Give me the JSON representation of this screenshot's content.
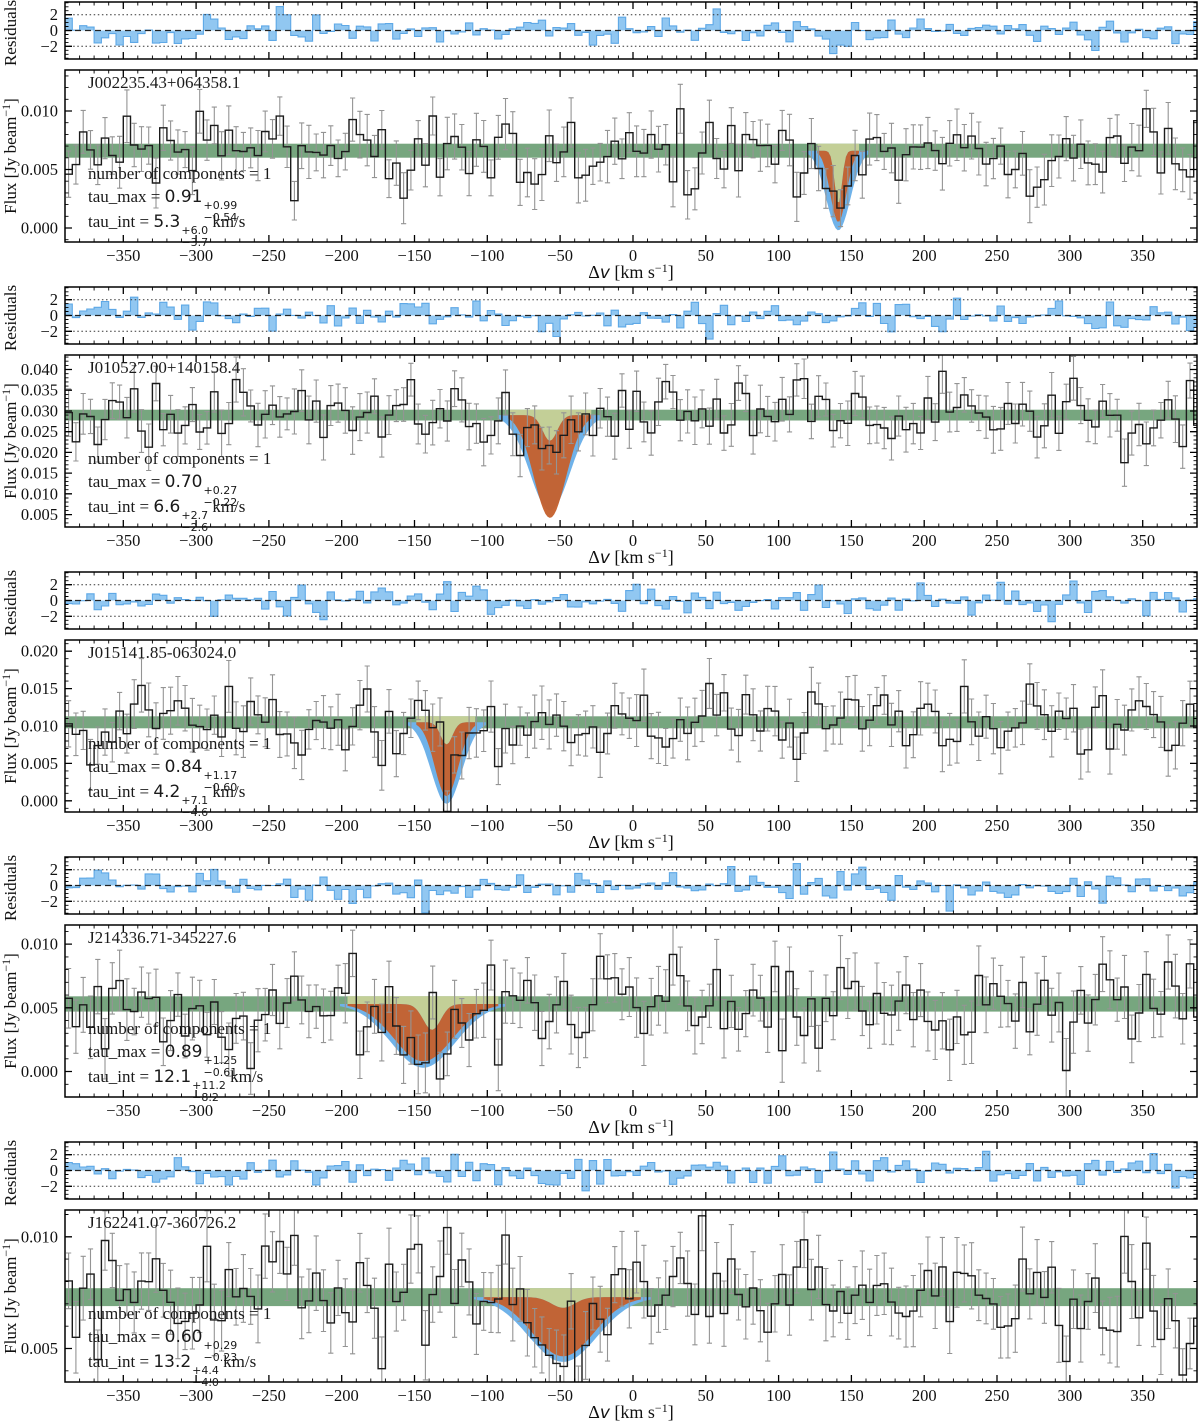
{
  "figure": {
    "xlim": [
      -390,
      387.3
    ],
    "x_major_ticks": [
      -350,
      -300,
      -250,
      -200,
      -150,
      -100,
      -50,
      0,
      50,
      100,
      150,
      200,
      250,
      300,
      350
    ],
    "x_minor_step_kms": 10,
    "bin_width_kms": 5,
    "xlabel_parts": {
      "delta": "Δ",
      "var": "v",
      "unit": " [km s",
      "sup": "−1",
      "close": "]"
    },
    "flux_ylabel_parts": {
      "pre": "Flux [Jy beam",
      "sup": "−1",
      "post": "]"
    },
    "residuals_ylabel": "Residuals"
  },
  "colors": {
    "axis": "#000000",
    "step_line": "#1b1b1b",
    "error_bar": "#949494",
    "continuum_band": "#77a67f",
    "continuum_band_light": "#c3cf97",
    "model_fill": "#c5612e",
    "model_uncertainty_fill": "#6fb2e9",
    "residual_fill": "#85c1f0",
    "residual_edge": "#5ea8e6",
    "zero_dash_line": "#222222",
    "guide_dot_line": "#333333"
  },
  "chart_data": [
    {
      "type": "line",
      "title": "J002235.43+064358.1",
      "ylim": [
        -0.0012,
        0.0135
      ],
      "yticks": [
        0.0,
        0.005,
        0.01
      ],
      "continuum": {
        "level": 0.0066,
        "half_width": 0.0006
      },
      "noise_sigma": 0.0016,
      "errorbar_half": 0.0019,
      "absorption_model": {
        "center_kms": 141,
        "width_kms": 5.5,
        "min_flux": 0.0005,
        "uncertainty_min_flux": -0.0002,
        "uncertainty_width_scale": 1.5,
        "notch_frac": 0.75,
        "notch_width_kms": 2.5,
        "notch_center_kms": 141,
        "data_dip_depth": 0.0055,
        "data_dip_width_kms": 4
      },
      "annotations": {
        "components": "number of components = 1",
        "tau_max": {
          "label": "tau_max = ",
          "value": "0.91",
          "plus": "+0.99",
          "minus": "−0.54"
        },
        "tau_int": {
          "label": "tau_int = ",
          "value": "5.3",
          "plus": "+6.0",
          "minus": "−3.7",
          "unit": " km/s"
        }
      },
      "residuals": {
        "ylim": [
          -3.6,
          3.6
        ],
        "yticks": [
          -2,
          0,
          2
        ],
        "zero_line": 0,
        "guide_lines": [
          -2,
          2
        ],
        "bias": {
          "center_kms": 141,
          "amplitude": -1.6,
          "width_kms": 7
        }
      },
      "seeds": {
        "flux": 20,
        "residuals": 3
      }
    },
    {
      "type": "line",
      "title": "J010527.00+140158.4",
      "ylim": [
        0.002,
        0.0435
      ],
      "yticks": [
        0.005,
        0.01,
        0.015,
        0.02,
        0.025,
        0.03,
        0.035,
        0.04
      ],
      "continuum": {
        "level": 0.029,
        "half_width": 0.0013
      },
      "noise_sigma": 0.0042,
      "errorbar_half": 0.0048,
      "absorption_model": {
        "center_kms": -57,
        "width_kms": 11,
        "min_flux": 0.0042,
        "uncertainty_min_flux": 0.006,
        "uncertainty_width_scale": 1.25,
        "notch_frac": 0.25,
        "notch_width_kms": 5,
        "notch_center_kms": -57,
        "data_dip_depth": 0.014,
        "data_dip_width_kms": 8
      },
      "annotations": {
        "components": "number of components = 1",
        "tau_max": {
          "label": "tau_max = ",
          "value": "0.70",
          "plus": "+0.27",
          "minus": "−0.22"
        },
        "tau_int": {
          "label": "tau_int = ",
          "value": "6.6",
          "plus": "+2.7",
          "minus": "−2.6",
          "unit": " km/s"
        }
      },
      "residuals": {
        "ylim": [
          -3.6,
          3.6
        ],
        "yticks": [
          -2,
          0,
          2
        ],
        "zero_line": 0,
        "guide_lines": [
          -2,
          2
        ],
        "bias": {
          "center_kms": -57,
          "amplitude": -2.3,
          "width_kms": 9
        }
      },
      "seeds": {
        "flux": 7,
        "residuals": 91
      }
    },
    {
      "type": "line",
      "title": "J015141.85-063024.0",
      "ylim": [
        -0.0015,
        0.0215
      ],
      "yticks": [
        0.0,
        0.005,
        0.01,
        0.015,
        0.02
      ],
      "continuum": {
        "level": 0.0105,
        "half_width": 0.0008
      },
      "noise_sigma": 0.0026,
      "errorbar_half": 0.003,
      "absorption_model": {
        "center_kms": -128,
        "width_kms": 8,
        "min_flux": 0.0006,
        "uncertainty_min_flux": -0.0004,
        "uncertainty_width_scale": 1.3,
        "notch_frac": 0.3,
        "notch_width_kms": 4,
        "notch_center_kms": -128,
        "data_dip_depth": 0.0075,
        "data_dip_width_kms": 6
      },
      "annotations": {
        "components": "number of components = 1",
        "tau_max": {
          "label": "tau_max = ",
          "value": "0.84",
          "plus": "+1.17",
          "minus": "−0.60"
        },
        "tau_int": {
          "label": "tau_int = ",
          "value": "4.2",
          "plus": "+7.1",
          "minus": "−4.6",
          "unit": " km/s"
        }
      },
      "residuals": {
        "ylim": [
          -3.6,
          3.6
        ],
        "yticks": [
          -2,
          0,
          2
        ],
        "zero_line": 0,
        "guide_lines": [
          -2,
          2
        ],
        "bias": {
          "center_kms": -128,
          "amplitude": 1.6,
          "width_kms": 7
        }
      },
      "seeds": {
        "flux": 83,
        "residuals": 54
      }
    },
    {
      "type": "line",
      "title": "J214336.71-345227.6",
      "ylim": [
        -0.002,
        0.0115
      ],
      "yticks": [
        0.0,
        0.005,
        0.01
      ],
      "continuum": {
        "level": 0.0053,
        "half_width": 0.0006
      },
      "noise_sigma": 0.0019,
      "errorbar_half": 0.0021,
      "absorption_model": {
        "center_kms": -144,
        "width_kms": 20,
        "min_flux": 0.0008,
        "uncertainty_min_flux": 0.0003,
        "uncertainty_width_scale": 1.1,
        "notch_frac": 0.45,
        "notch_width_kms": 6,
        "notch_center_kms": -138,
        "data_dip_depth": 0.0048,
        "data_dip_width_kms": 16
      },
      "annotations": {
        "components": "number of components = 1",
        "tau_max": {
          "label": "tau_max = ",
          "value": "0.89",
          "plus": "+1.25",
          "minus": "−0.61"
        },
        "tau_int": {
          "label": "tau_int = ",
          "value": "12.1",
          "plus": "+11.2",
          "minus": "−8.2",
          "unit": " km/s"
        }
      },
      "residuals": {
        "ylim": [
          -3.6,
          3.6
        ],
        "yticks": [
          -2,
          0,
          2
        ],
        "zero_line": 0,
        "guide_lines": [
          -2,
          2
        ],
        "bias": {
          "center_kms": -144,
          "amplitude": -1.4,
          "width_kms": 12
        }
      },
      "seeds": {
        "flux": 45,
        "residuals": 28
      }
    },
    {
      "type": "line",
      "title": "J162241.07-360726.2",
      "ylim": [
        0.0035,
        0.0112
      ],
      "yticks": [
        0.005,
        0.01
      ],
      "continuum": {
        "level": 0.0073,
        "half_width": 0.0004
      },
      "noise_sigma": 0.0013,
      "errorbar_half": 0.0014,
      "absorption_model": {
        "center_kms": -48,
        "width_kms": 21,
        "min_flux": 0.00465,
        "uncertainty_min_flux": 0.0044,
        "uncertainty_width_scale": 1.12,
        "notch_frac": 0.18,
        "notch_width_kms": 8,
        "notch_center_kms": -48,
        "data_dip_depth": 0.0026,
        "data_dip_width_kms": 18
      },
      "annotations": {
        "components": "number of components = 1",
        "tau_max": {
          "label": "tau_max = ",
          "value": "0.60",
          "plus": "+0.29",
          "minus": "−0.23"
        },
        "tau_int": {
          "label": "tau_int = ",
          "value": "13.2",
          "plus": "+4.4",
          "minus": "−4.0",
          "unit": " km/s"
        }
      },
      "residuals": {
        "ylim": [
          -3.6,
          3.6
        ],
        "yticks": [
          -2,
          0,
          2
        ],
        "zero_line": 0,
        "guide_lines": [
          -2,
          2
        ],
        "bias": {
          "center_kms": -48,
          "amplitude": -1.2,
          "width_kms": 14
        }
      },
      "seeds": {
        "flux": 66,
        "residuals": 77
      }
    }
  ]
}
